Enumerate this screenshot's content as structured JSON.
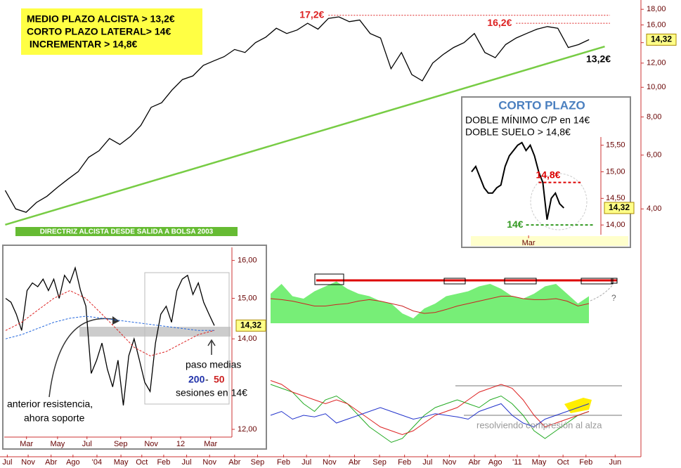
{
  "chart_data": [
    {
      "type": "line",
      "log_scale": true,
      "color": "#000000",
      "values": [
        4.6,
        4.0,
        3.9,
        4.2,
        4.4,
        4.7,
        5.0,
        5.3,
        5.9,
        6.2,
        6.8,
        6.5,
        6.9,
        7.5,
        8.6,
        8.9,
        9.8,
        10.6,
        10.9,
        11.8,
        12.2,
        12.6,
        13.3,
        13.0,
        14.0,
        14.6,
        15.6,
        15.0,
        15.4,
        16.2,
        15.5,
        16.8,
        17.0,
        16.4,
        16.6,
        15.0,
        14.5,
        11.5,
        13.0,
        11.0,
        10.5,
        12.0,
        12.8,
        13.5,
        14.0,
        15.0,
        13.0,
        12.5,
        13.8,
        14.5,
        15.0,
        15.5,
        15.8,
        15.6,
        13.5,
        13.8,
        14.32
      ],
      "xlim": [
        -0.5,
        60.5
      ],
      "xticks": [
        {
          "value": 0.2,
          "label": "Jul"
        },
        {
          "value": 2.2,
          "label": "Nov"
        },
        {
          "value": 4.4,
          "label": "Abr"
        },
        {
          "value": 6.5,
          "label": "Ago"
        },
        {
          "value": 8.8,
          "label": "'04"
        },
        {
          "value": 11.1,
          "label": "May"
        },
        {
          "value": 13.1,
          "label": "Oct"
        },
        {
          "value": 15.2,
          "label": "Feb"
        },
        {
          "value": 17.4,
          "label": "Jul"
        },
        {
          "value": 19.6,
          "label": "Nov"
        },
        {
          "value": 22.0,
          "label": "Abr"
        },
        {
          "value": 24.2,
          "label": "Sep"
        },
        {
          "value": 26.7,
          "label": "Feb"
        },
        {
          "value": 28.9,
          "label": "Jul"
        },
        {
          "value": 31.1,
          "label": "Nov"
        },
        {
          "value": 33.5,
          "label": "Abr"
        },
        {
          "value": 35.9,
          "label": "Sep"
        },
        {
          "value": 38.3,
          "label": "Feb"
        },
        {
          "value": 40.5,
          "label": "Jul"
        },
        {
          "value": 42.6,
          "label": "Nov"
        },
        {
          "value": 45.0,
          "label": "Abr"
        },
        {
          "value": 47.0,
          "label": "Ago"
        },
        {
          "value": 49.1,
          "label": "'11"
        },
        {
          "value": 51.2,
          "label": "May"
        },
        {
          "value": 53.5,
          "label": "Oct"
        },
        {
          "value": 55.7,
          "label": "Feb"
        },
        {
          "value": 58.5,
          "label": "Jun"
        }
      ],
      "ylim": [
        3.4,
        18.8
      ],
      "yticks": [
        {
          "value": 18,
          "label": "18,00"
        },
        {
          "value": 16,
          "label": "16,00"
        },
        {
          "value": 14,
          "label": "14,00"
        },
        {
          "value": 12,
          "label": "12,00"
        },
        {
          "value": 10,
          "label": "10,00"
        },
        {
          "value": 8,
          "label": "8,00"
        },
        {
          "value": 6,
          "label": "6,00"
        },
        {
          "value": 4,
          "label": "4,00"
        }
      ],
      "last_price": {
        "value": 14.32,
        "label": "14,32"
      },
      "notes": [
        "MEDIO PLAZO ALCISTA > 13,2€",
        "CORTO PLAZO LATERAL> 14€",
        " INCREMENTAR > 14,8€"
      ],
      "trendline": {
        "x": [
          0,
          57.5
        ],
        "y": [
          3.55,
          13.6
        ],
        "color": "#77cc44"
      },
      "trendline_label": "DIRECTRIZ ALCISTA DESDE SALIDA A BOLSA 2003",
      "levels": [
        {
          "value": 17.2,
          "label": "17,2€",
          "from": 31,
          "to": 58
        },
        {
          "value": 16.2,
          "label": "16,2€",
          "from": 49,
          "to": 58
        },
        {
          "value": 13.2,
          "label": "13,2€"
        }
      ]
    },
    {
      "type": "line",
      "log_scale": true,
      "series": [
        {
          "values": [
            15.0,
            14.9,
            14.6,
            14.2,
            15.2,
            15.4,
            15.3,
            15.5,
            15.2,
            15.5,
            15.0,
            15.6,
            15.4,
            15.8,
            15.2,
            14.8,
            13.2,
            13.5,
            13.9,
            13.3,
            12.9,
            13.5,
            12.5,
            13.6,
            14.0,
            13.5,
            13.0,
            12.8,
            13.9,
            14.6,
            14.8,
            14.4,
            15.2,
            15.5,
            15.6,
            15.1,
            15.4,
            14.9,
            14.6,
            14.32
          ],
          "color": "#000000"
        },
        {
          "x": [
            0,
            3,
            6,
            9,
            12,
            15,
            18,
            21,
            24,
            27,
            30,
            33,
            36,
            39
          ],
          "values": [
            14.0,
            14.1,
            14.25,
            14.4,
            14.5,
            14.55,
            14.5,
            14.45,
            14.4,
            14.35,
            14.3,
            14.25,
            14.2,
            14.2
          ],
          "color": "#2266dd"
        },
        {
          "x": [
            0,
            3,
            6,
            9,
            12,
            15,
            18,
            21,
            24,
            27,
            30,
            33,
            36,
            39
          ],
          "values": [
            14.2,
            14.4,
            14.7,
            15.0,
            15.2,
            15.0,
            14.6,
            14.2,
            13.8,
            13.6,
            13.7,
            13.9,
            14.1,
            14.2
          ],
          "color": "#dd2222"
        }
      ],
      "xlim": [
        0,
        39
      ],
      "xticks": [
        {
          "value": 3.9,
          "label": "Mar"
        },
        {
          "value": 9.7,
          "label": "May"
        },
        {
          "value": 15.2,
          "label": "Jul"
        },
        {
          "value": 21.5,
          "label": "Sep"
        },
        {
          "value": 27.2,
          "label": "Nov"
        },
        {
          "value": 32.7,
          "label": "12"
        },
        {
          "value": 38.3,
          "label": "Mar"
        }
      ],
      "ylim": [
        11.73,
        16.4
      ],
      "yticks": [
        {
          "value": 16,
          "label": "16,00"
        },
        {
          "value": 15,
          "label": "15,00"
        },
        {
          "value": 14,
          "label": "14,00"
        },
        {
          "value": 12,
          "label": "12,00"
        }
      ],
      "last_price": {
        "value": 14.32,
        "label": "14,32"
      },
      "annotations": [
        "paso medias",
        "200",
        "-",
        "50",
        "sesiones en 14€",
        "anterior resistencia,",
        "ahora soporte"
      ]
    },
    {
      "type": "line",
      "title": "CORTO PLAZO",
      "subtitle": [
        "DOBLE MÍNIMO C/P en 14€",
        "DOBLE SUELO > 14,8€"
      ],
      "color": "#000000",
      "values": [
        15.0,
        15.1,
        14.9,
        14.7,
        14.6,
        14.6,
        14.7,
        14.75,
        15.1,
        15.3,
        15.4,
        15.5,
        15.55,
        15.4,
        15.5,
        15.3,
        15.0,
        14.8,
        14.1,
        14.5,
        14.6,
        14.4,
        14.32
      ],
      "xlim": [
        -1,
        30
      ],
      "xticks": [
        {
          "value": 13.6,
          "label": "Mar"
        }
      ],
      "ylim": [
        13.87,
        15.72
      ],
      "yticks": [
        {
          "value": 15.5,
          "label": "15,50"
        },
        {
          "value": 15,
          "label": "15,00"
        },
        {
          "value": 14.5,
          "label": "14,50"
        },
        {
          "value": 14,
          "label": "14,00"
        }
      ],
      "last_price": {
        "value": 14.32,
        "label": "14,32"
      },
      "levels": [
        {
          "value": 14.8,
          "label": "14,8€",
          "color": "#dd0000",
          "from": 16,
          "to": 26
        },
        {
          "value": 14,
          "label": "14€",
          "color": "#339922",
          "from": 13,
          "to": 29
        }
      ]
    },
    {
      "type": "area",
      "xlim": [
        0,
        29
      ],
      "ylim": [
        0,
        100
      ],
      "series": [
        {
          "values": [
            60,
            80,
            55,
            50,
            65,
            75,
            85,
            70,
            60,
            55,
            45,
            40,
            20,
            10,
            30,
            40,
            55,
            60,
            65,
            75,
            80,
            70,
            55,
            50,
            60,
            75,
            80,
            60,
            40,
            55
          ],
          "color": "#77ee77"
        },
        {
          "values": [
            50,
            48,
            45,
            40,
            35,
            35,
            38,
            40,
            45,
            48,
            45,
            40,
            35,
            25,
            20,
            22,
            28,
            35,
            40,
            45,
            50,
            55,
            55,
            50,
            48,
            48,
            50,
            45,
            35,
            40
          ],
          "color": "#cc2222"
        }
      ],
      "annotations": [
        "?"
      ]
    },
    {
      "type": "line",
      "xlim": [
        0,
        29
      ],
      "ylim": [
        0,
        100
      ],
      "series": [
        {
          "values": [
            80,
            75,
            70,
            55,
            45,
            60,
            65,
            55,
            40,
            25,
            15,
            5,
            10,
            25,
            40,
            50,
            55,
            60,
            55,
            50,
            60,
            65,
            55,
            40,
            20,
            10,
            20,
            30,
            40,
            45
          ],
          "color": "#22aa22"
        },
        {
          "values": [
            85,
            80,
            70,
            65,
            60,
            55,
            60,
            55,
            45,
            35,
            25,
            20,
            15,
            20,
            30,
            40,
            45,
            50,
            60,
            70,
            75,
            80,
            75,
            60,
            40,
            25,
            30,
            35,
            40,
            45
          ],
          "color": "#dd2222"
        },
        {
          "values": [
            40,
            45,
            35,
            40,
            38,
            42,
            30,
            35,
            40,
            45,
            50,
            45,
            40,
            35,
            38,
            42,
            40,
            38,
            35,
            45,
            50,
            55,
            40,
            30,
            25,
            35,
            40,
            45,
            50,
            55
          ],
          "color": "#2233cc"
        }
      ],
      "annotations": [
        "resolviendo compresión al alza"
      ]
    }
  ]
}
